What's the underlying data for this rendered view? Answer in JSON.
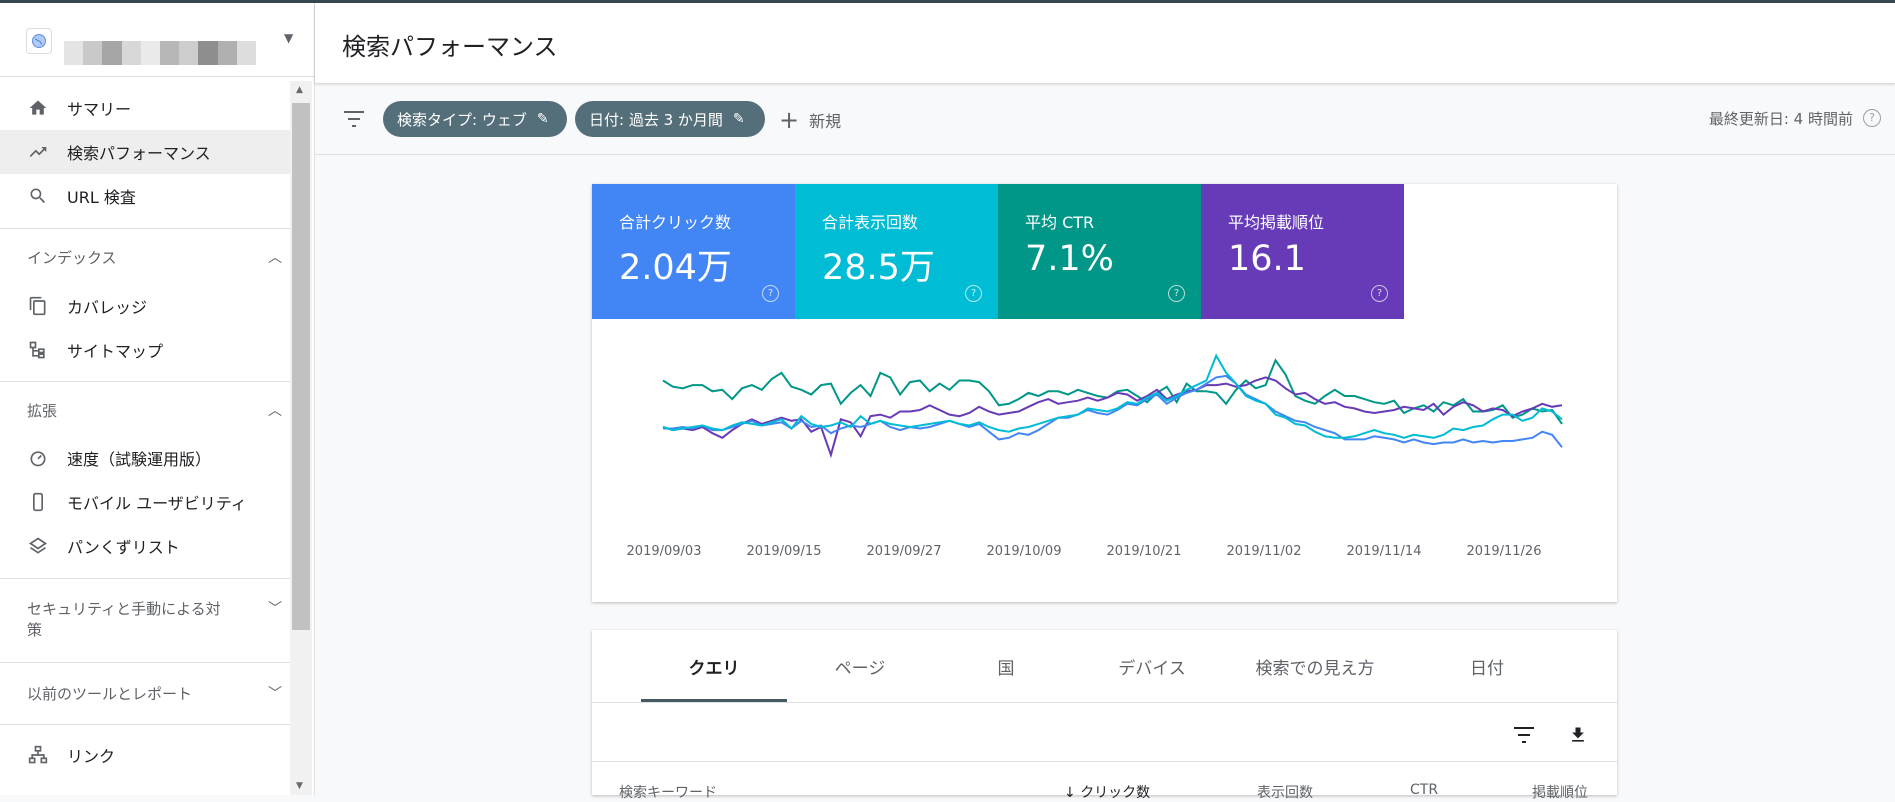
{
  "header": {
    "title": "検索パフォーマンス"
  },
  "sidebar": {
    "items": [
      {
        "label": "サマリー",
        "icon": "home-icon"
      },
      {
        "label": "検索パフォーマンス",
        "icon": "trending-icon"
      },
      {
        "label": "URL 検査",
        "icon": "search-icon"
      },
      {
        "label": "カバレッジ",
        "icon": "copy-icon"
      },
      {
        "label": "サイトマップ",
        "icon": "sitemap-icon"
      },
      {
        "label": "速度（試験運用版）",
        "icon": "speed-icon"
      },
      {
        "label": "モバイル ユーザビリティ",
        "icon": "phone-icon"
      },
      {
        "label": "パンくずリスト",
        "icon": "layers-icon"
      },
      {
        "label": "リンク",
        "icon": "link-tree-icon"
      }
    ],
    "sections": {
      "index": "インデックス",
      "enhance": "拡張",
      "security": "セキュリティと手動による対策",
      "legacy": "以前のツールとレポート"
    }
  },
  "filters": {
    "chip1": "検索タイプ: ウェブ",
    "chip2": "日付: 過去 3 か月間",
    "new": "新規",
    "updated": "最終更新日: 4 時間前"
  },
  "metrics": [
    {
      "label": "合計クリック数",
      "value": "2.04万",
      "color": "#4285f4"
    },
    {
      "label": "合計表示回数",
      "value": "28.5万",
      "color": "#00bcd4"
    },
    {
      "label": "平均 CTR",
      "value": "7.1%",
      "color": "#009688"
    },
    {
      "label": "平均掲載順位",
      "value": "16.1",
      "color": "#673ab7"
    }
  ],
  "chart_data": {
    "type": "line",
    "x_ticks": [
      "2019/09/03",
      "2019/09/15",
      "2019/09/27",
      "2019/10/09",
      "2019/10/21",
      "2019/11/02",
      "2019/11/14",
      "2019/11/26"
    ],
    "ylim": [
      0,
      100
    ],
    "series": [
      {
        "color": "#009688",
        "values": [
          70,
          66,
          65,
          67,
          67,
          63,
          64,
          58,
          65,
          67,
          64,
          71,
          75,
          66,
          64,
          61,
          67,
          68,
          55,
          62,
          67,
          60,
          75,
          72,
          61,
          69,
          70,
          63,
          68,
          64,
          70,
          70,
          69,
          63,
          54,
          55,
          58,
          62,
          60,
          63,
          63,
          61,
          64,
          62,
          60,
          59,
          63,
          64,
          60,
          56,
          62,
          66,
          56,
          68,
          63,
          63,
          62,
          55,
          64,
          70,
          65,
          67,
          83,
          74,
          60,
          57,
          55,
          60,
          64,
          60,
          60,
          58,
          56,
          55,
          57,
          49,
          52,
          54,
          50,
          56,
          54,
          58,
          50,
          50,
          51,
          54,
          46,
          48,
          52,
          50,
          51,
          42
        ]
      },
      {
        "color": "#673ab7",
        "values": [
          40,
          38,
          39,
          38,
          40,
          36,
          33,
          38,
          42,
          45,
          42,
          44,
          46,
          44,
          45,
          37,
          40,
          22,
          45,
          43,
          34,
          47,
          48,
          46,
          50,
          50,
          51,
          54,
          51,
          48,
          47,
          49,
          53,
          50,
          48,
          49,
          50,
          53,
          56,
          58,
          55,
          56,
          57,
          59,
          57,
          59,
          62,
          61,
          57,
          60,
          64,
          58,
          61,
          63,
          64,
          67,
          67,
          68,
          66,
          67,
          70,
          72,
          70,
          65,
          61,
          62,
          58,
          55,
          56,
          53,
          52,
          50,
          49,
          50,
          51,
          53,
          52,
          51,
          55,
          48,
          53,
          56,
          54,
          50,
          52,
          51,
          47,
          50,
          52,
          55,
          53,
          54
        ]
      },
      {
        "color": "#4285f4",
        "values": [
          39,
          39,
          40,
          39,
          41,
          38,
          38,
          40,
          42,
          44,
          41,
          42,
          43,
          39,
          44,
          40,
          41,
          36,
          39,
          41,
          40,
          42,
          44,
          40,
          38,
          40,
          39,
          40,
          42,
          44,
          42,
          40,
          42,
          37,
          32,
          33,
          36,
          35,
          38,
          42,
          46,
          46,
          48,
          51,
          49,
          48,
          51,
          55,
          54,
          58,
          61,
          55,
          59,
          62,
          64,
          68,
          72,
          73,
          68,
          61,
          58,
          55,
          50,
          47,
          44,
          43,
          40,
          38,
          36,
          32,
          32,
          32,
          34,
          33,
          32,
          30,
          32,
          30,
          29,
          30,
          30,
          32,
          30,
          31,
          30,
          31,
          31,
          32,
          33,
          37,
          35,
          27
        ]
      },
      {
        "color": "#00bcd4",
        "values": [
          40,
          38,
          39,
          40,
          41,
          39,
          38,
          41,
          43,
          42,
          41,
          43,
          45,
          39,
          47,
          42,
          40,
          41,
          43,
          40,
          47,
          42,
          44,
          42,
          41,
          40,
          41,
          42,
          43,
          44,
          42,
          41,
          43,
          40,
          38,
          37,
          39,
          40,
          42,
          44,
          46,
          47,
          48,
          52,
          51,
          50,
          52,
          56,
          55,
          59,
          62,
          57,
          60,
          64,
          67,
          70,
          86,
          75,
          68,
          60,
          57,
          55,
          48,
          46,
          42,
          41,
          37,
          34,
          33,
          33,
          34,
          36,
          38,
          36,
          35,
          33,
          35,
          34,
          33,
          35,
          39,
          38,
          40,
          41,
          45,
          48,
          48,
          44,
          46,
          52,
          50,
          45
        ]
      }
    ]
  },
  "tabs": [
    "クエリ",
    "ページ",
    "国",
    "デバイス",
    "検索での見え方",
    "日付"
  ],
  "table": {
    "columns": [
      "検索キーワード",
      "クリック数",
      "表示回数",
      "CTR",
      "掲載順位"
    ]
  }
}
